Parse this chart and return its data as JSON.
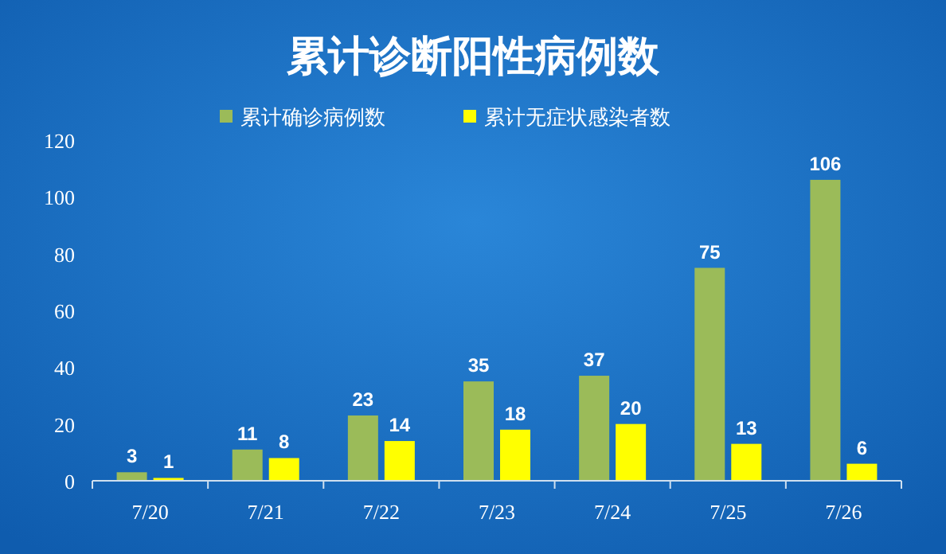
{
  "chart_data": {
    "type": "bar",
    "title": "累计诊断阳性病例数",
    "categories": [
      "7/20",
      "7/21",
      "7/22",
      "7/23",
      "7/24",
      "7/25",
      "7/26"
    ],
    "series": [
      {
        "name": "累计确诊病例数",
        "color": "#9bbb59",
        "values": [
          3,
          11,
          23,
          35,
          37,
          75,
          106
        ]
      },
      {
        "name": "累计无症状感染者数",
        "color": "#ffff00",
        "values": [
          1,
          8,
          14,
          18,
          20,
          13,
          6
        ]
      }
    ],
    "ylim": [
      0,
      120
    ],
    "yticks": [
      0,
      20,
      40,
      60,
      80,
      100,
      120
    ],
    "grid": false,
    "legend": "top",
    "data_labels": true
  }
}
